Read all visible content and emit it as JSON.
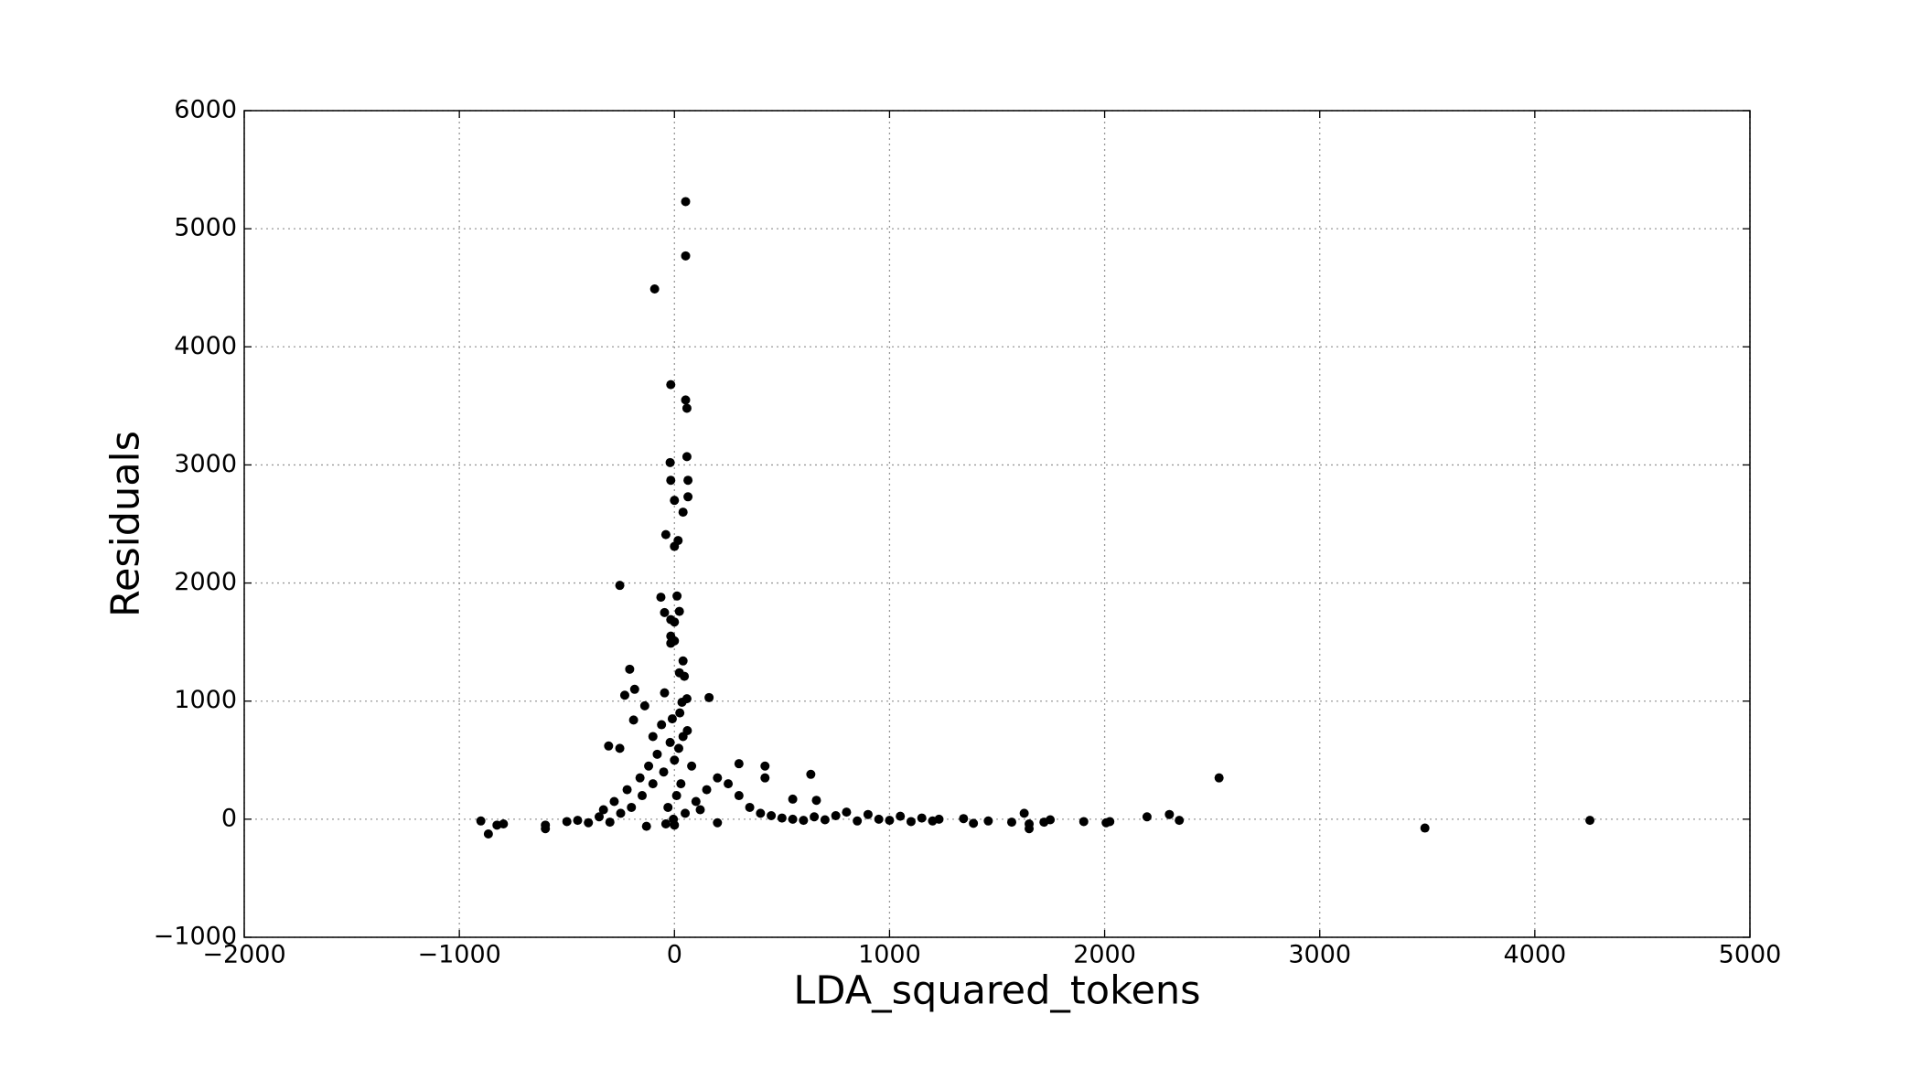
{
  "chart_data": {
    "type": "scatter",
    "xlabel": "LDA_squared_tokens",
    "ylabel": "Residuals",
    "color": "#000000",
    "grid": true,
    "xlim": [
      -2000,
      5000
    ],
    "ylim": [
      -1000,
      6000
    ],
    "xticks": [
      {
        "value": -2000,
        "label": "−2000"
      },
      {
        "value": -1000,
        "label": "−1000"
      },
      0,
      1000,
      2000,
      3000,
      4000,
      5000
    ],
    "yticks": [
      {
        "value": -1000,
        "label": "−1000"
      },
      0,
      1000,
      2000,
      3000,
      4000,
      5000,
      6000
    ],
    "x": [
      52,
      52,
      -92,
      -17,
      52,
      58,
      58,
      -20,
      -17,
      63,
      0,
      63,
      40,
      -40,
      17,
      0,
      -254,
      -63,
      12,
      -46,
      23,
      -17,
      0,
      -17,
      0,
      -17,
      40,
      -208,
      23,
      46,
      161,
      -185,
      -231,
      -138,
      -190,
      -46,
      58,
      35,
      -306,
      -254,
      300,
      421,
      421,
      634,
      2532,
      3489,
      4256,
      -900,
      -865,
      -825,
      -795,
      -600,
      -600,
      2301,
      2197,
      2347,
      2007,
      2024,
      1903,
      1747,
      1718,
      1649,
      1649,
      1626,
      1568,
      1459,
      1390,
      1344,
      -500,
      -450,
      -400,
      -350,
      -300,
      -250,
      -200,
      -150,
      -100,
      -50,
      0,
      20,
      40,
      -20,
      -80,
      -120,
      -160,
      -220,
      -280,
      -330,
      30,
      10,
      -30,
      50,
      100,
      150,
      200,
      250,
      300,
      350,
      400,
      450,
      500,
      550,
      600,
      650,
      700,
      750,
      800,
      850,
      900,
      950,
      1000,
      1050,
      1100,
      1150,
      1200,
      1230,
      -60,
      -10,
      25,
      -100,
      60,
      -40,
      0,
      -130,
      200,
      120,
      80,
      -5,
      660,
      550
    ],
    "values": [
      5230,
      4770,
      4490,
      3680,
      3550,
      3480,
      3070,
      3020,
      2870,
      2870,
      2700,
      2730,
      2600,
      2410,
      2360,
      2310,
      1980,
      1880,
      1890,
      1750,
      1760,
      1690,
      1670,
      1550,
      1510,
      1490,
      1340,
      1270,
      1240,
      1210,
      1030,
      1100,
      1050,
      960,
      840,
      1070,
      1020,
      990,
      620,
      600,
      470,
      450,
      350,
      380,
      350,
      -75,
      -10,
      -15,
      -125,
      -50,
      -40,
      -50,
      -80,
      40,
      20,
      -10,
      -30,
      -20,
      -20,
      -5,
      -25,
      -40,
      -80,
      50,
      -25,
      -15,
      -35,
      5,
      -20,
      -10,
      -30,
      20,
      -25,
      50,
      100,
      200,
      300,
      400,
      500,
      600,
      700,
      650,
      550,
      450,
      350,
      250,
      150,
      80,
      300,
      200,
      100,
      50,
      150,
      250,
      350,
      300,
      200,
      100,
      50,
      30,
      10,
      0,
      -10,
      20,
      -5,
      30,
      60,
      -15,
      40,
      0,
      -10,
      25,
      -20,
      10,
      -15,
      0,
      800,
      850,
      900,
      700,
      750,
      -40,
      -50,
      -60,
      -30,
      80,
      450,
      0,
      160,
      170
    ]
  }
}
